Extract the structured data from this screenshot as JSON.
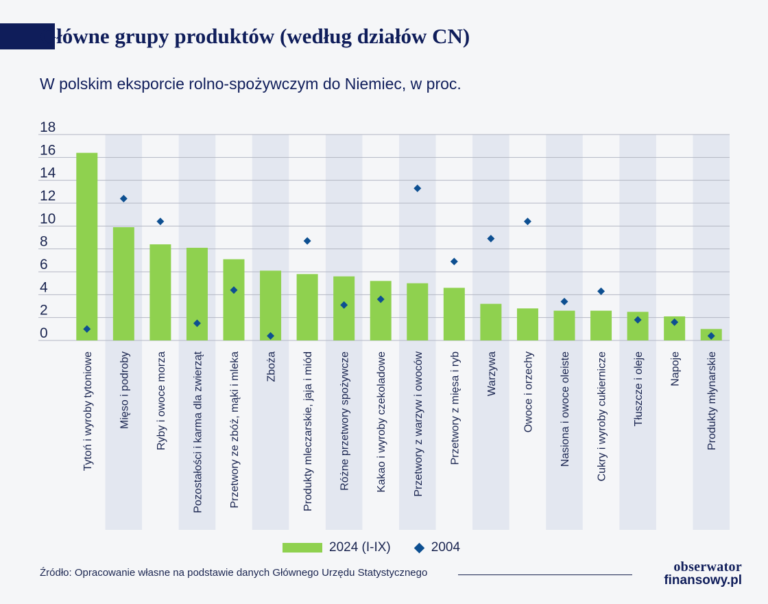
{
  "header": {
    "title": "Główne grupy produktów (według działów CN)",
    "subtitle": "W polskim eksporcie rolno-spożywczym do Niemiec, w proc."
  },
  "chart_data": {
    "type": "bar",
    "categories": [
      "Tytoń i wyroby tytoniowe",
      "Mięso i podroby",
      "Ryby i owoce morza",
      "Pozostałości i karma dla zwierząt",
      "Przetwory ze zbóż, mąki i mleka",
      "Zboża",
      "Produkty mleczarskie, jaja i miód",
      "Różne przetwory spożywcze",
      "Kakao i wyroby czekoladowe",
      "Przetwory z warzyw i owoców",
      "Przetwory z mięsa i ryb",
      "Warzywa",
      "Owoce i orzechy",
      "Nasiona i owoce oleiste",
      "Cukry i wyroby cukiernicze",
      "Tłuszcze i oleje",
      "Napoje",
      "Produkty młynarskie"
    ],
    "series": [
      {
        "name": "2024 (I-IX)",
        "kind": "bar",
        "color": "#8fd14f",
        "values": [
          16.4,
          9.9,
          8.4,
          8.1,
          7.1,
          6.1,
          5.8,
          5.6,
          5.2,
          5.0,
          4.6,
          3.2,
          2.8,
          2.6,
          2.6,
          2.5,
          2.1,
          1.0
        ]
      },
      {
        "name": "2004",
        "kind": "marker",
        "color": "#0d4f91",
        "values": [
          1.0,
          12.4,
          10.4,
          1.5,
          4.4,
          0.4,
          8.7,
          3.1,
          3.6,
          13.3,
          6.9,
          8.9,
          10.4,
          3.4,
          4.3,
          1.8,
          1.6,
          0.4
        ]
      }
    ],
    "ylim": [
      0,
      18
    ],
    "yticks": [
      0,
      2,
      4,
      6,
      8,
      10,
      12,
      14,
      16,
      18
    ],
    "grid": true,
    "legend_position": "bottom"
  },
  "legend": {
    "bar_label": "2024 (I-IX)",
    "marker_label": "2004"
  },
  "footer": {
    "source": "Źródło: Opracowanie własne na podstawie danych Głównego Urzędu Statystycznego",
    "logo_line1": "obserwator",
    "logo_line2": "finansowy.pl"
  },
  "colors": {
    "title": "#0f1d5a",
    "bar": "#8fd14f",
    "marker": "#0d4f91",
    "band": "#e3e7f0",
    "grid": "#b3b7c3"
  }
}
